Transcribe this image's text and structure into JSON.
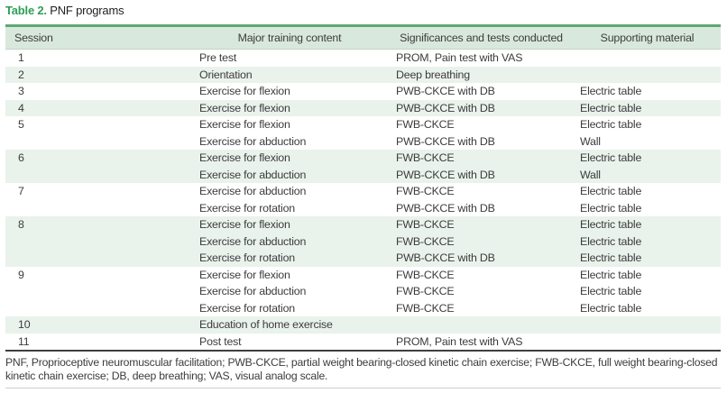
{
  "title": {
    "label": "Table 2.",
    "text": " PNF programs"
  },
  "columns": [
    "Session",
    "Major training content",
    "Significances and tests conducted",
    "Supporting material"
  ],
  "rows": [
    {
      "session": "1",
      "lines": [
        {
          "content": "Pre test",
          "significance": "PROM, Pain test with VAS",
          "material": ""
        }
      ]
    },
    {
      "session": "2",
      "lines": [
        {
          "content": "Orientation",
          "significance": "Deep breathing",
          "material": ""
        }
      ]
    },
    {
      "session": "3",
      "lines": [
        {
          "content": "Exercise for flexion",
          "significance": "PWB-CKCE with DB",
          "material": "Electric table"
        }
      ]
    },
    {
      "session": "4",
      "lines": [
        {
          "content": "Exercise for flexion",
          "significance": "PWB-CKCE with DB",
          "material": "Electric table"
        }
      ]
    },
    {
      "session": "5",
      "lines": [
        {
          "content": "Exercise for flexion",
          "significance": "FWB-CKCE",
          "material": "Electric table"
        },
        {
          "content": "Exercise for abduction",
          "significance": "PWB-CKCE with DB",
          "material": "Wall"
        }
      ]
    },
    {
      "session": "6",
      "lines": [
        {
          "content": "Exercise for flexion",
          "significance": "FWB-CKCE",
          "material": "Electric table"
        },
        {
          "content": "Exercise for abduction",
          "significance": "PWB-CKCE with DB",
          "material": "Wall"
        }
      ]
    },
    {
      "session": "7",
      "lines": [
        {
          "content": "Exercise for abduction",
          "significance": "FWB-CKCE",
          "material": "Electric table"
        },
        {
          "content": "Exercise for rotation",
          "significance": "PWB-CKCE with DB",
          "material": "Electric table"
        }
      ]
    },
    {
      "session": "8",
      "lines": [
        {
          "content": "Exercise for flexion",
          "significance": "FWB-CKCE",
          "material": "Electric table"
        },
        {
          "content": "Exercise for abduction",
          "significance": "FWB-CKCE",
          "material": "Electric table"
        },
        {
          "content": "Exercise for rotation",
          "significance": "PWB-CKCE with DB",
          "material": "Electric table"
        }
      ]
    },
    {
      "session": "9",
      "lines": [
        {
          "content": "Exercise for flexion",
          "significance": "FWB-CKCE",
          "material": "Electric table"
        },
        {
          "content": "Exercise for abduction",
          "significance": "FWB-CKCE",
          "material": "Electric table"
        },
        {
          "content": "Exercise for rotation",
          "significance": "FWB-CKCE",
          "material": "Electric table"
        }
      ]
    },
    {
      "session": "10",
      "lines": [
        {
          "content": "Education of home exercise",
          "significance": "",
          "material": ""
        }
      ]
    },
    {
      "session": "11",
      "lines": [
        {
          "content": "Post test",
          "significance": "PROM, Pain test with VAS",
          "material": ""
        }
      ]
    }
  ],
  "footnote": "PNF, Proprioceptive neuromuscular facilitation; PWB-CKCE, partial weight bearing-closed kinetic chain exercise; FWB-CKCE, full weight bearing-closed kinetic chain exercise; DB, deep breathing; VAS, visual analog scale.",
  "colors": {
    "accent_green": "#2e9e55",
    "header_border_green": "#5fa873",
    "header_bg": "#d9e8dc",
    "stripe_bg": "#eaf2ec",
    "text": "#3c3c3c",
    "bottom_rule_dark": "#3f3f3f",
    "bottom_rule_light": "#cfcfcf"
  }
}
